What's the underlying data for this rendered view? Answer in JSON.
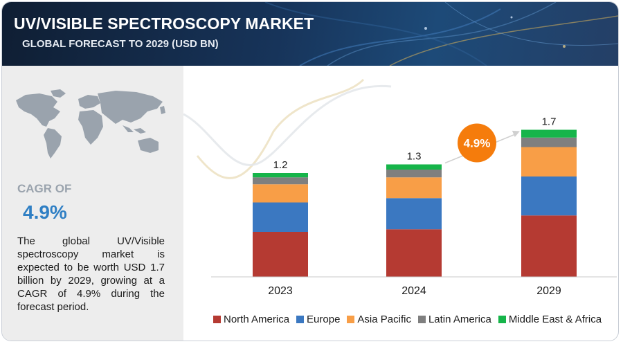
{
  "header": {
    "title": "UV/VISIBLE SPECTROSCOPY MARKET",
    "subtitle": "GLOBAL FORECAST TO 2029 (USD BN)"
  },
  "summary": {
    "cagr_label": "CAGR OF",
    "cagr_value": "4.9%",
    "description": "The global UV/Visible spectroscopy market is expected to be worth USD 1.7 billion by 2029, growing at a CAGR of 4.9% during the forecast period."
  },
  "growth_badge": "4.9%",
  "colors": {
    "north_america": "#b53a32",
    "europe": "#3b78c1",
    "asia_pacific": "#f89e47",
    "latin_america": "#7f7f7f",
    "middle_east_africa": "#16b54a",
    "badge": "#f57c0c"
  },
  "chart_data": {
    "type": "bar",
    "stacked": true,
    "title": "UV/VISIBLE SPECTROSCOPY MARKET",
    "subtitle": "GLOBAL FORECAST TO 2029 (USD BN)",
    "xlabel": "",
    "ylabel": "",
    "ylim": [
      0,
      2.0
    ],
    "grid": false,
    "legend_position": "bottom",
    "categories": [
      "2023",
      "2024",
      "2029"
    ],
    "totals": [
      "1.2",
      "1.3",
      "1.7"
    ],
    "total_values": [
      1.2,
      1.3,
      1.7
    ],
    "series": [
      {
        "name": "North America",
        "color": "#b53a32",
        "values": [
          0.52,
          0.55,
          0.71
        ]
      },
      {
        "name": "Europe",
        "color": "#3b78c1",
        "values": [
          0.34,
          0.36,
          0.45
        ]
      },
      {
        "name": "Asia Pacific",
        "color": "#f89e47",
        "values": [
          0.21,
          0.24,
          0.34
        ]
      },
      {
        "name": "Latin America",
        "color": "#7f7f7f",
        "values": [
          0.08,
          0.09,
          0.11
        ]
      },
      {
        "name": "Middle East & Africa",
        "color": "#16b54a",
        "values": [
          0.05,
          0.06,
          0.09
        ]
      }
    ],
    "annotations": [
      {
        "text": "4.9%",
        "kind": "growth-arrow",
        "from": "2024",
        "to": "2029"
      }
    ]
  }
}
